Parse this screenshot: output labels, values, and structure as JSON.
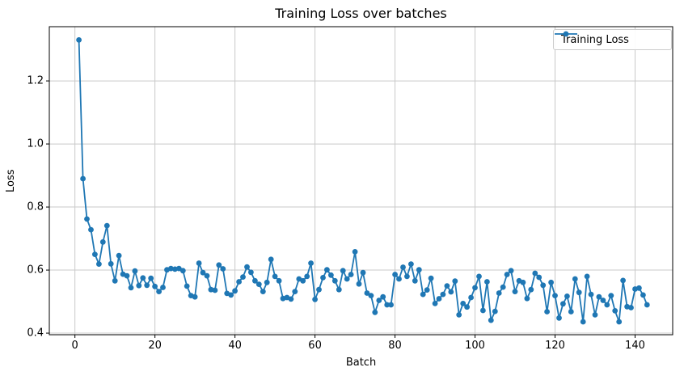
{
  "chart_data": {
    "type": "line",
    "title": "Training Loss over batches",
    "xlabel": "Batch",
    "ylabel": "Loss",
    "grid": true,
    "legend_position": "upper right",
    "marker": "o",
    "line_color": "#1f77b4",
    "grid_color": "#c9c9c9",
    "spine_color": "#000000",
    "background": "#ffffff",
    "x_ticks": [
      0,
      20,
      40,
      60,
      80,
      100,
      120,
      140
    ],
    "y_ticks": [
      0.4,
      0.6,
      0.8,
      1.0,
      1.2
    ],
    "xlim": [
      -6.4,
      149.4
    ],
    "ylim": [
      0.395,
      1.372
    ],
    "series": [
      {
        "name": "Training Loss",
        "x_start": 1,
        "x_step": 1,
        "values": [
          1.33,
          0.89,
          0.762,
          0.728,
          0.65,
          0.619,
          0.689,
          0.741,
          0.62,
          0.566,
          0.646,
          0.587,
          0.582,
          0.544,
          0.597,
          0.551,
          0.575,
          0.552,
          0.574,
          0.548,
          0.532,
          0.545,
          0.601,
          0.605,
          0.603,
          0.605,
          0.598,
          0.549,
          0.519,
          0.515,
          0.622,
          0.592,
          0.582,
          0.538,
          0.536,
          0.616,
          0.604,
          0.526,
          0.521,
          0.534,
          0.563,
          0.578,
          0.61,
          0.593,
          0.566,
          0.555,
          0.532,
          0.561,
          0.634,
          0.58,
          0.566,
          0.51,
          0.513,
          0.508,
          0.532,
          0.572,
          0.566,
          0.58,
          0.622,
          0.507,
          0.538,
          0.576,
          0.601,
          0.584,
          0.566,
          0.538,
          0.598,
          0.572,
          0.586,
          0.658,
          0.556,
          0.592,
          0.527,
          0.519,
          0.466,
          0.504,
          0.515,
          0.49,
          0.49,
          0.586,
          0.572,
          0.609,
          0.58,
          0.619,
          0.566,
          0.601,
          0.523,
          0.537,
          0.574,
          0.494,
          0.509,
          0.523,
          0.55,
          0.531,
          0.565,
          0.458,
          0.494,
          0.483,
          0.513,
          0.544,
          0.58,
          0.472,
          0.563,
          0.441,
          0.469,
          0.527,
          0.546,
          0.586,
          0.598,
          0.532,
          0.566,
          0.561,
          0.51,
          0.538,
          0.59,
          0.577,
          0.552,
          0.468,
          0.561,
          0.519,
          0.448,
          0.493,
          0.517,
          0.468,
          0.572,
          0.529,
          0.436,
          0.58,
          0.523,
          0.458,
          0.515,
          0.504,
          0.49,
          0.519,
          0.471,
          0.436,
          0.567,
          0.484,
          0.481,
          0.54,
          0.543,
          0.521,
          0.49
        ]
      }
    ]
  }
}
